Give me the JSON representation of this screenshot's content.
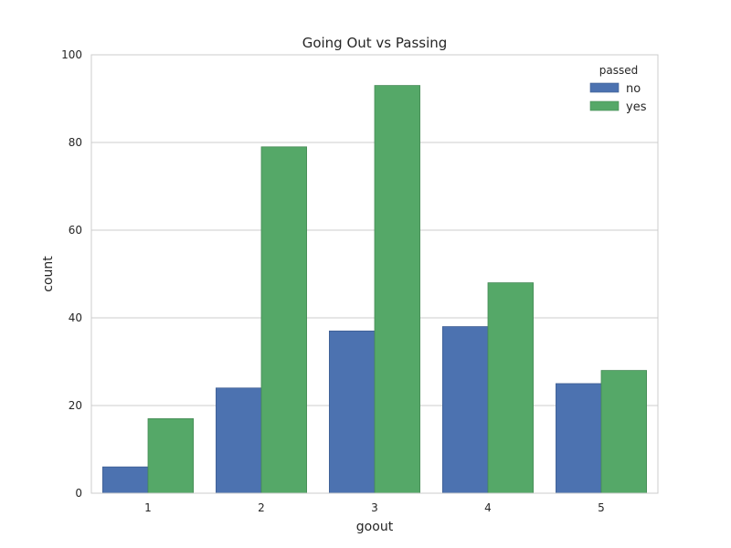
{
  "chart_data": {
    "type": "bar",
    "title": "Going Out vs Passing",
    "xlabel": "goout",
    "ylabel": "count",
    "categories": [
      "1",
      "2",
      "3",
      "4",
      "5"
    ],
    "series": [
      {
        "name": "no",
        "color": "#4c72b0",
        "values": [
          6,
          24,
          37,
          38,
          25
        ]
      },
      {
        "name": "yes",
        "color": "#55a868",
        "values": [
          17,
          79,
          93,
          48,
          28
        ]
      }
    ],
    "ylim": [
      0,
      100
    ],
    "yticks": [
      "0",
      "20",
      "40",
      "60",
      "80",
      "100"
    ],
    "grid": true,
    "legend": {
      "title": "passed",
      "position": "top-right"
    }
  }
}
